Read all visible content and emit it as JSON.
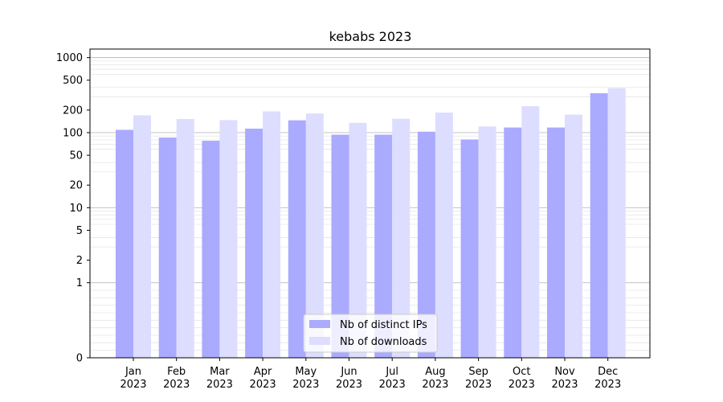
{
  "chart_data": {
    "type": "bar",
    "title": "kebabs 2023",
    "xlabel": "",
    "ylabel": "",
    "categories": [
      "Jan",
      "Feb",
      "Mar",
      "Apr",
      "May",
      "Jun",
      "Jul",
      "Aug",
      "Sep",
      "Oct",
      "Nov",
      "Dec"
    ],
    "category_year": "2023",
    "series": [
      {
        "name": "Nb of distinct IPs",
        "color": "#aaaaff",
        "values": [
          109,
          86,
          78,
          113,
          146,
          94,
          94,
          103,
          81,
          117,
          117,
          335
        ]
      },
      {
        "name": "Nb of downloads",
        "color": "#ddddff",
        "values": [
          170,
          152,
          147,
          192,
          180,
          135,
          153,
          185,
          121,
          225,
          174,
          392
        ]
      }
    ],
    "y_scale": "symlog",
    "y_ticks": [
      0,
      1,
      2,
      5,
      10,
      20,
      50,
      100,
      200,
      500,
      1000
    ],
    "y_tick_labels": [
      "0",
      "1",
      "2",
      "5",
      "10",
      "20",
      "50",
      "100",
      "200",
      "500",
      "1000"
    ],
    "ylim": [
      0,
      1300
    ],
    "grid": true,
    "legend_position": "bottom-center"
  }
}
